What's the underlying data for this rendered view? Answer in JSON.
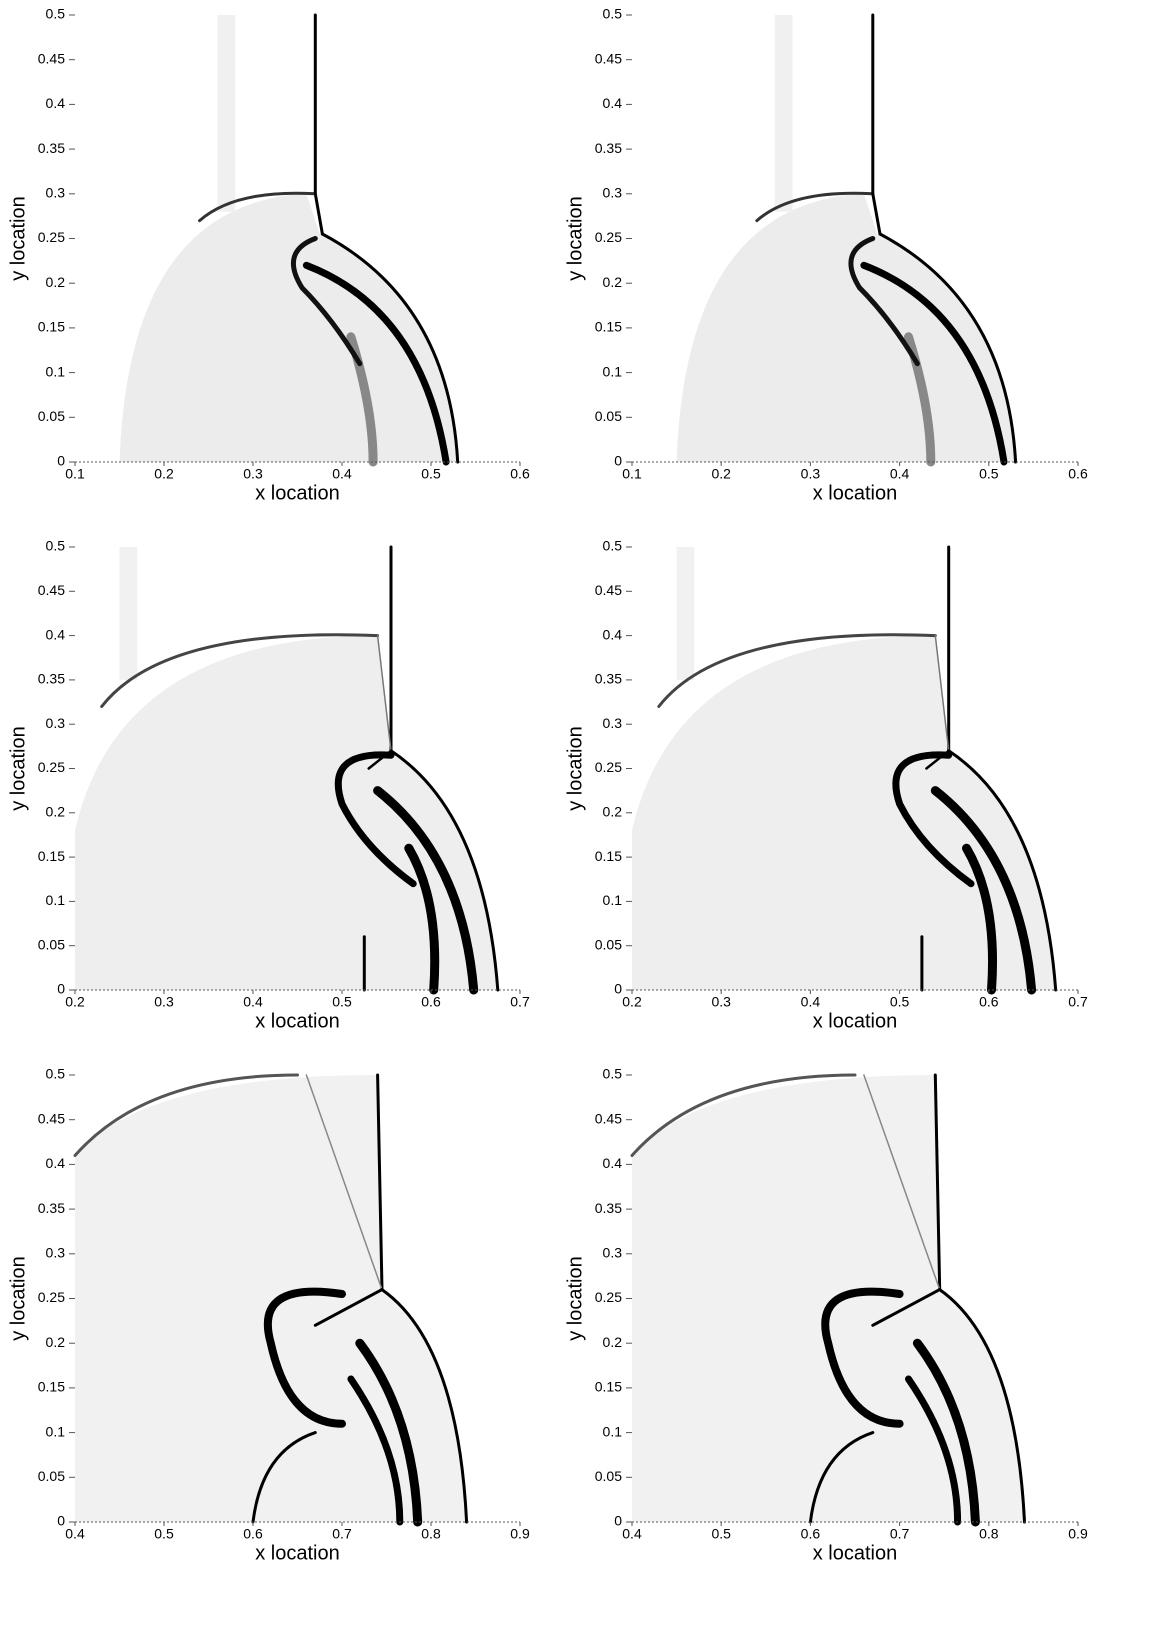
{
  "chart_data": [
    {
      "type": "schlieren",
      "xlabel": "x location",
      "ylabel": "y location",
      "xlim": [
        0.1,
        0.6
      ],
      "xticks": [
        0.1,
        0.2,
        0.3,
        0.4,
        0.5,
        0.6
      ],
      "ylim": [
        0,
        0.5
      ],
      "yticks": [
        0,
        0.05,
        0.1,
        0.15,
        0.2,
        0.25,
        0.3,
        0.35,
        0.4,
        0.45,
        0.5
      ]
    },
    {
      "type": "schlieren",
      "xlabel": "x location",
      "ylabel": "y location",
      "xlim": [
        0.1,
        0.6
      ],
      "xticks": [
        0.1,
        0.2,
        0.3,
        0.4,
        0.5,
        0.6
      ],
      "ylim": [
        0,
        0.5
      ],
      "yticks": [
        0,
        0.05,
        0.1,
        0.15,
        0.2,
        0.25,
        0.3,
        0.35,
        0.4,
        0.45,
        0.5
      ]
    },
    {
      "type": "schlieren",
      "xlabel": "x location",
      "ylabel": "y location",
      "xlim": [
        0.2,
        0.7
      ],
      "xticks": [
        0.2,
        0.3,
        0.4,
        0.5,
        0.6,
        0.7
      ],
      "ylim": [
        0,
        0.5
      ],
      "yticks": [
        0,
        0.05,
        0.1,
        0.15,
        0.2,
        0.25,
        0.3,
        0.35,
        0.4,
        0.45,
        0.5
      ]
    },
    {
      "type": "schlieren",
      "xlabel": "x location",
      "ylabel": "y location",
      "xlim": [
        0.2,
        0.7
      ],
      "xticks": [
        0.2,
        0.3,
        0.4,
        0.5,
        0.6,
        0.7
      ],
      "ylim": [
        0,
        0.5
      ],
      "yticks": [
        0,
        0.05,
        0.1,
        0.15,
        0.2,
        0.25,
        0.3,
        0.35,
        0.4,
        0.45,
        0.5
      ]
    },
    {
      "type": "schlieren",
      "xlabel": "x location",
      "ylabel": "y location",
      "xlim": [
        0.4,
        0.9
      ],
      "xticks": [
        0.4,
        0.5,
        0.6,
        0.7,
        0.8,
        0.9
      ],
      "ylim": [
        0,
        0.5
      ],
      "yticks": [
        0,
        0.05,
        0.1,
        0.15,
        0.2,
        0.25,
        0.3,
        0.35,
        0.4,
        0.45,
        0.5
      ]
    },
    {
      "type": "schlieren",
      "xlabel": "x location",
      "ylabel": "y location",
      "xlim": [
        0.4,
        0.9
      ],
      "xticks": [
        0.4,
        0.5,
        0.6,
        0.7,
        0.8,
        0.9
      ],
      "ylim": [
        0,
        0.5
      ],
      "yticks": [
        0,
        0.05,
        0.1,
        0.15,
        0.2,
        0.25,
        0.3,
        0.35,
        0.4,
        0.45,
        0.5
      ]
    }
  ]
}
